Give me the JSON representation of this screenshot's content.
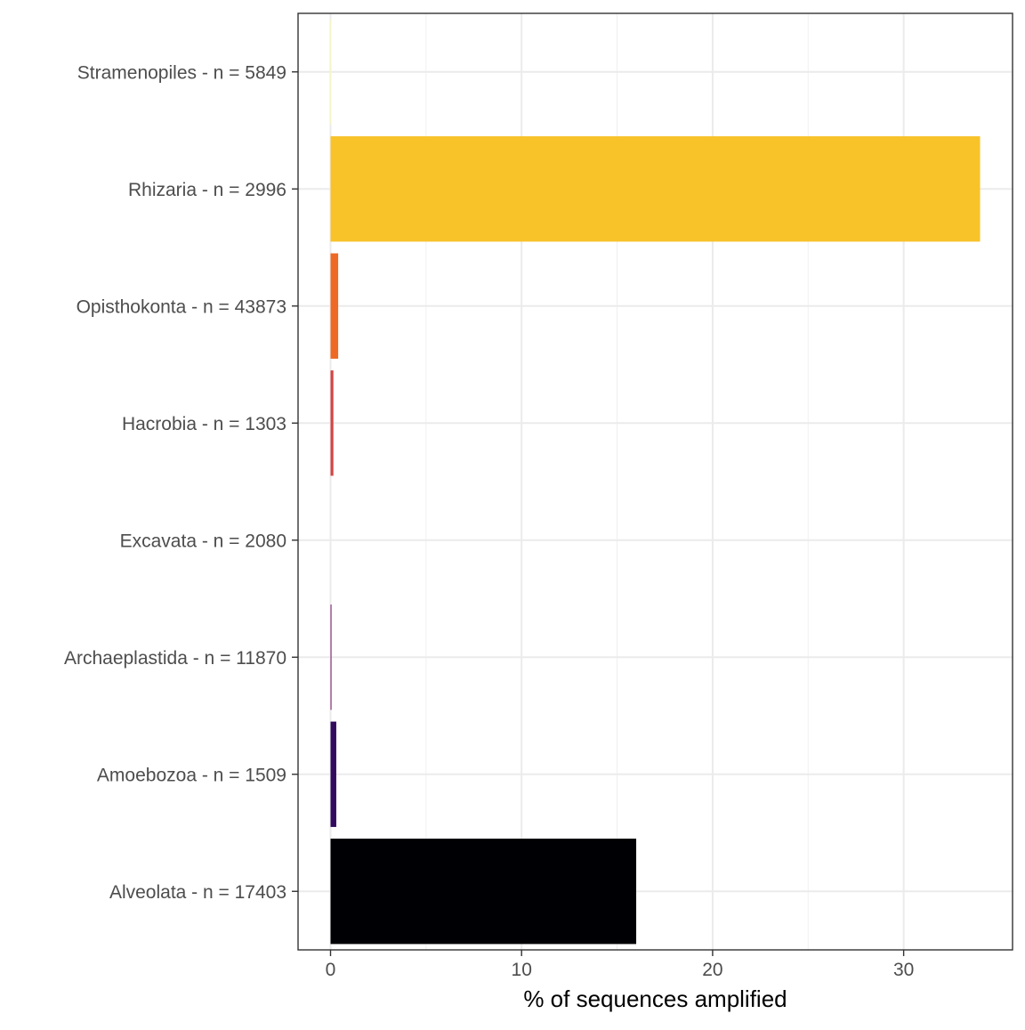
{
  "chart_data": {
    "type": "bar",
    "orientation": "horizontal",
    "categories": [
      "Alveolata - n = 17403",
      "Amoebozoa - n = 1509",
      "Archaeplastida - n = 11870",
      "Excavata - n = 2080",
      "Hacrobia - n = 1303",
      "Opisthokonta - n = 43873",
      "Rhizaria - n = 2996",
      "Stramenopiles - n = 5849"
    ],
    "values": [
      16.0,
      0.3,
      0.05,
      0.0,
      0.15,
      0.4,
      34.0,
      0.05
    ],
    "colors": [
      "#000004",
      "#320A5E",
      "#781C6D",
      "#BB3754",
      "#D24644",
      "#ED6925",
      "#F8C229",
      "#FCFFA4"
    ],
    "title": "",
    "xlabel": "% of sequences amplified",
    "ylabel": "",
    "xlim": [
      -1.7,
      35.7
    ],
    "xticks": [
      0,
      10,
      20,
      30
    ],
    "xtick_labels": [
      "0",
      "10",
      "20",
      "30"
    ],
    "grid": true,
    "legend": "none"
  }
}
